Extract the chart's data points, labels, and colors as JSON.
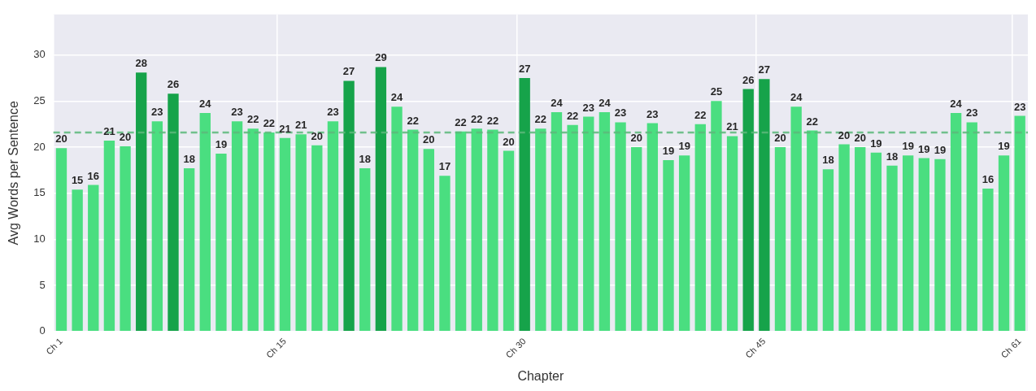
{
  "chart_data": {
    "type": "bar",
    "xlabel": "Chapter",
    "ylabel": "Avg Words per Sentence",
    "categories": [
      "Ch 1",
      null,
      null,
      null,
      null,
      null,
      null,
      null,
      null,
      null,
      null,
      null,
      null,
      null,
      "Ch 15",
      null,
      null,
      null,
      null,
      null,
      null,
      null,
      null,
      null,
      null,
      null,
      null,
      null,
      null,
      "Ch 30",
      null,
      null,
      null,
      null,
      null,
      null,
      null,
      null,
      null,
      null,
      null,
      null,
      null,
      null,
      "Ch 45",
      null,
      null,
      null,
      null,
      null,
      null,
      null,
      null,
      null,
      null,
      null,
      null,
      null,
      null,
      null,
      "Ch 61"
    ],
    "values": [
      19.9,
      15.4,
      15.9,
      20.7,
      20.1,
      28.1,
      22.8,
      25.8,
      17.7,
      23.7,
      19.3,
      22.8,
      22.0,
      21.6,
      21.0,
      21.4,
      20.2,
      22.8,
      27.2,
      17.7,
      28.7,
      24.4,
      21.9,
      19.8,
      16.9,
      21.7,
      22.0,
      21.9,
      19.6,
      27.5,
      22.0,
      23.8,
      22.4,
      23.3,
      23.8,
      22.7,
      20.0,
      22.6,
      18.6,
      19.1,
      22.5,
      25.0,
      21.2,
      26.3,
      27.4,
      20.0,
      24.4,
      21.8,
      17.6,
      20.3,
      20.0,
      19.4,
      18.0,
      19.1,
      18.8,
      18.7,
      23.7,
      22.7,
      15.5,
      19.1,
      23.4
    ],
    "value_labels": [
      "20",
      "15",
      "16",
      "21",
      "20",
      "28",
      "23",
      "26",
      "18",
      "24",
      "19",
      "23",
      "22",
      "22",
      "21",
      "21",
      "20",
      "23",
      "27",
      "18",
      "29",
      "24",
      "22",
      "20",
      "17",
      "22",
      "22",
      "22",
      "20",
      "27",
      "22",
      "24",
      "22",
      "23",
      "24",
      "23",
      "20",
      "23",
      "19",
      "19",
      "22",
      "25",
      "21",
      "26",
      "27",
      "20",
      "24",
      "22",
      "18",
      "20",
      "20",
      "19",
      "18",
      "19",
      "19",
      "19",
      "24",
      "23",
      "16",
      "19",
      "23"
    ],
    "colors": [
      "#4ade80",
      "#4ade80",
      "#4ade80",
      "#4ade80",
      "#4ade80",
      "#16a34a",
      "#4ade80",
      "#16a34a",
      "#4ade80",
      "#4ade80",
      "#4ade80",
      "#4ade80",
      "#4ade80",
      "#4ade80",
      "#4ade80",
      "#4ade80",
      "#4ade80",
      "#4ade80",
      "#16a34a",
      "#4ade80",
      "#16a34a",
      "#4ade80",
      "#4ade80",
      "#4ade80",
      "#4ade80",
      "#4ade80",
      "#4ade80",
      "#4ade80",
      "#4ade80",
      "#16a34a",
      "#4ade80",
      "#4ade80",
      "#4ade80",
      "#4ade80",
      "#4ade80",
      "#4ade80",
      "#4ade80",
      "#4ade80",
      "#4ade80",
      "#4ade80",
      "#4ade80",
      "#4ade80",
      "#4ade80",
      "#16a34a",
      "#16a34a",
      "#4ade80",
      "#4ade80",
      "#4ade80",
      "#4ade80",
      "#4ade80",
      "#4ade80",
      "#4ade80",
      "#4ade80",
      "#4ade80",
      "#4ade80",
      "#4ade80",
      "#4ade80",
      "#4ade80",
      "#4ade80",
      "#4ade80",
      "#4ade80"
    ],
    "ylim": [
      0,
      34.4
    ],
    "yticks": [
      0,
      5,
      10,
      15,
      20,
      25,
      30
    ],
    "ref_lines": [
      {
        "axis": "y",
        "value": 21.6,
        "color": "#5cb87a",
        "line_style": "dashed"
      }
    ],
    "grid": true,
    "legend": false
  }
}
